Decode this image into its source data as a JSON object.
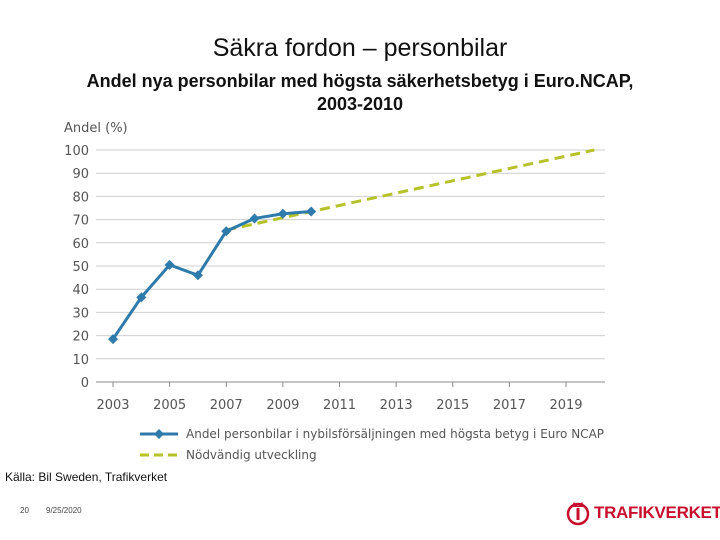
{
  "slide": {
    "title": "Säkra fordon – personbilar",
    "subtitle": "Andel nya personbilar med högsta säkerhetsbetyg i Euro.NCAP, 2003-2010"
  },
  "chart_data": {
    "type": "line",
    "ylabel": "Andel (%)",
    "xlabel": "",
    "ylim": [
      0,
      100
    ],
    "xlim": [
      2003,
      2020
    ],
    "y_ticks": [
      0,
      10,
      20,
      30,
      40,
      50,
      60,
      70,
      80,
      90,
      100
    ],
    "x_ticks": [
      2003,
      2005,
      2007,
      2009,
      2011,
      2013,
      2015,
      2017,
      2019
    ],
    "grid": "horizontal",
    "legend_position": "bottom",
    "series": [
      {
        "name": "Andel personbilar i nybilsförsäljningen med högsta betyg i Euro NCAP",
        "color": "#2e7bab",
        "marker": "diamond",
        "style": "solid",
        "x": [
          2003,
          2004,
          2005,
          2006,
          2007,
          2008,
          2009,
          2010
        ],
        "y": [
          18.5,
          36.5,
          50.5,
          46,
          65,
          70.5,
          72.5,
          73.5
        ]
      },
      {
        "name": "Nödvändig utveckling",
        "color": "#b5c22a",
        "marker": "none",
        "style": "dashed",
        "x": [
          2007,
          2020
        ],
        "y": [
          65.5,
          100
        ]
      }
    ]
  },
  "source": "Källa: Bil Sweden, Trafikverket",
  "footer": {
    "page_number": "20",
    "date": "9/25/2020"
  },
  "logo": {
    "text": "TRAFIKVERKET",
    "icon": "crown-emblem-icon",
    "color": "#c8102e"
  }
}
